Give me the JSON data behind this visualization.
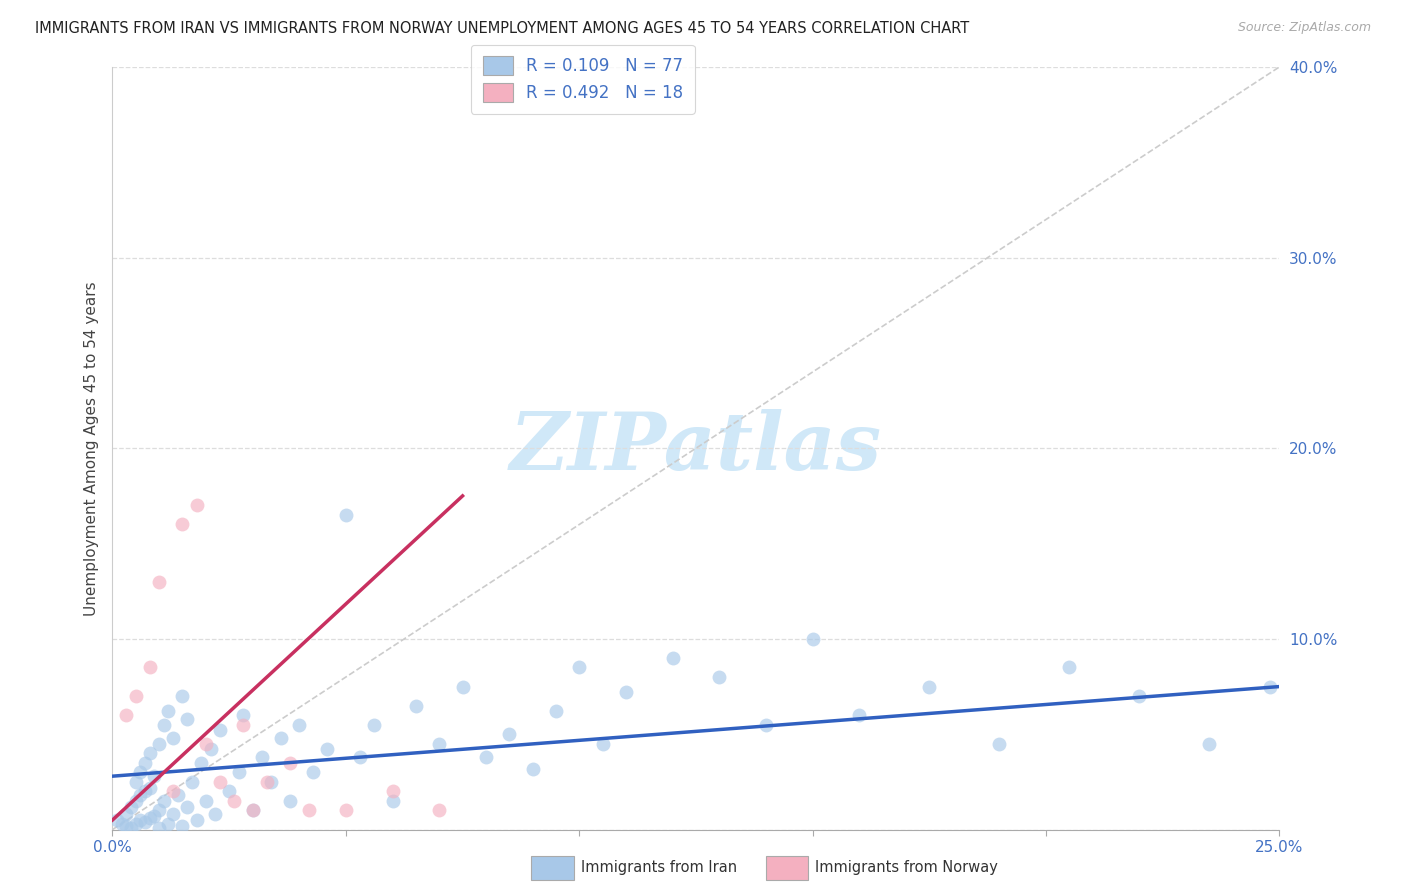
{
  "title": "IMMIGRANTS FROM IRAN VS IMMIGRANTS FROM NORWAY UNEMPLOYMENT AMONG AGES 45 TO 54 YEARS CORRELATION CHART",
  "source": "Source: ZipAtlas.com",
  "ylabel": "Unemployment Among Ages 45 to 54 years",
  "xlim": [
    0.0,
    0.25
  ],
  "ylim": [
    0.0,
    0.4
  ],
  "iran_color": "#a8c8e8",
  "norway_color": "#f4b0c0",
  "iran_line_color": "#3060c0",
  "norway_line_color": "#c83060",
  "diag_color": "#cccccc",
  "grid_color": "#dddddd",
  "watermark_text": "ZIPatlas",
  "watermark_color": "#d0e8f8",
  "iran_R": 0.109,
  "iran_N": 77,
  "norway_R": 0.492,
  "norway_N": 18,
  "iran_trend_x": [
    0.0,
    0.25
  ],
  "iran_trend_y": [
    0.028,
    0.075
  ],
  "norway_trend_x": [
    0.0,
    0.075
  ],
  "norway_trend_y": [
    0.005,
    0.175
  ],
  "legend_label_iran": "Immigrants from Iran",
  "legend_label_norway": "Immigrants from Norway",
  "iran_x": [
    0.001,
    0.002,
    0.003,
    0.003,
    0.004,
    0.004,
    0.005,
    0.005,
    0.005,
    0.006,
    0.006,
    0.006,
    0.007,
    0.007,
    0.007,
    0.008,
    0.008,
    0.008,
    0.009,
    0.009,
    0.01,
    0.01,
    0.01,
    0.011,
    0.011,
    0.012,
    0.012,
    0.013,
    0.013,
    0.014,
    0.015,
    0.015,
    0.016,
    0.016,
    0.017,
    0.018,
    0.019,
    0.02,
    0.021,
    0.022,
    0.023,
    0.025,
    0.027,
    0.028,
    0.03,
    0.032,
    0.034,
    0.036,
    0.038,
    0.04,
    0.043,
    0.046,
    0.05,
    0.053,
    0.056,
    0.06,
    0.065,
    0.07,
    0.075,
    0.08,
    0.085,
    0.09,
    0.095,
    0.1,
    0.105,
    0.11,
    0.12,
    0.13,
    0.14,
    0.15,
    0.16,
    0.175,
    0.19,
    0.205,
    0.22,
    0.235,
    0.248
  ],
  "iran_y": [
    0.005,
    0.003,
    0.002,
    0.008,
    0.001,
    0.012,
    0.003,
    0.015,
    0.025,
    0.005,
    0.018,
    0.03,
    0.004,
    0.02,
    0.035,
    0.006,
    0.022,
    0.04,
    0.007,
    0.028,
    0.001,
    0.01,
    0.045,
    0.015,
    0.055,
    0.003,
    0.062,
    0.008,
    0.048,
    0.018,
    0.002,
    0.07,
    0.012,
    0.058,
    0.025,
    0.005,
    0.035,
    0.015,
    0.042,
    0.008,
    0.052,
    0.02,
    0.03,
    0.06,
    0.01,
    0.038,
    0.025,
    0.048,
    0.015,
    0.055,
    0.03,
    0.042,
    0.165,
    0.038,
    0.055,
    0.015,
    0.065,
    0.045,
    0.075,
    0.038,
    0.05,
    0.032,
    0.062,
    0.085,
    0.045,
    0.072,
    0.09,
    0.08,
    0.055,
    0.1,
    0.06,
    0.075,
    0.045,
    0.085,
    0.07,
    0.045,
    0.075
  ],
  "norway_x": [
    0.003,
    0.005,
    0.008,
    0.01,
    0.013,
    0.015,
    0.018,
    0.02,
    0.023,
    0.026,
    0.028,
    0.03,
    0.033,
    0.038,
    0.042,
    0.05,
    0.06,
    0.07
  ],
  "norway_y": [
    0.06,
    0.07,
    0.085,
    0.13,
    0.02,
    0.16,
    0.17,
    0.045,
    0.025,
    0.015,
    0.055,
    0.01,
    0.025,
    0.035,
    0.01,
    0.01,
    0.02,
    0.01
  ]
}
